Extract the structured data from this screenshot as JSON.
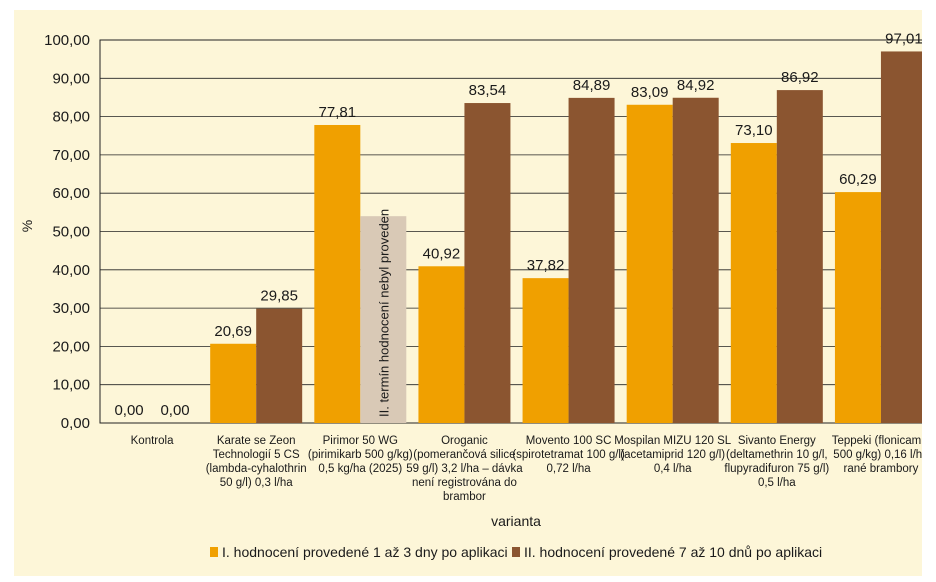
{
  "chart_data": {
    "type": "bar",
    "categories": [
      [
        "Kontrola"
      ],
      [
        "Karate se Zeon",
        "Technologií 5 CS",
        "(lambda-cyhalothrin",
        "50 g/l) 0,3 l/ha"
      ],
      [
        "Pirimor 50 WG",
        "(pirimikarb 500 g/kg)",
        "0,5 kg/ha (2025)"
      ],
      [
        "Oroganic",
        "(pomerančová silice",
        "59 g/l) 3,2 l/ha – dávka",
        "není registrována do",
        "brambor"
      ],
      [
        "Movento 100 SC",
        "(spirotetramat 100 g/l)",
        "0,72 l/ha"
      ],
      [
        "Mospilan MIZU 120 SL",
        "(acetamiprid 120 g/l)",
        "0,4 l/ha"
      ],
      [
        "Sivanto Energy",
        "(deltamethrin 10 g/l,",
        "flupyradifuron 75 g/l)",
        "0,5 l/ha"
      ],
      [
        "Teppeki (flonicamid",
        "500 g/kg) 0,16 l/ha",
        "rané brambory"
      ]
    ],
    "series": [
      {
        "name": "I. hodnocení provedené 1 až 3 dny po aplikaci",
        "color": "#f0a000",
        "values": [
          0.0,
          20.69,
          77.81,
          40.92,
          37.82,
          83.09,
          73.1,
          60.29
        ],
        "labels": [
          "0,00",
          "20,69",
          "77,81",
          "40,92",
          "37,82",
          "83,09",
          "73,10",
          "60,29"
        ]
      },
      {
        "name": "II. hodnocení provedené 7 až 10 dnů po aplikaci",
        "color": "#8b5530",
        "values": [
          0.0,
          29.85,
          null,
          83.54,
          84.89,
          84.92,
          86.92,
          97.01
        ],
        "labels": [
          "0,00",
          "29,85",
          "",
          "83,54",
          "84,89",
          "84,92",
          "86,92",
          "97,01"
        ]
      }
    ],
    "placeholder": {
      "category_index": 2,
      "value": 54,
      "color": "#d9c9b6",
      "text": "II. termín hodnocení nebyl proveden"
    },
    "ylabel": "%",
    "xlabel": "varianta",
    "ylim": [
      0,
      100
    ],
    "yticks": [
      0,
      10,
      20,
      30,
      40,
      50,
      60,
      70,
      80,
      90,
      100
    ],
    "ytick_labels": [
      "0,00",
      "10,00",
      "20,00",
      "30,00",
      "40,00",
      "50,00",
      "60,00",
      "70,00",
      "80,00",
      "90,00",
      "100,00"
    ],
    "grid": true,
    "legend_position": "bottom"
  }
}
